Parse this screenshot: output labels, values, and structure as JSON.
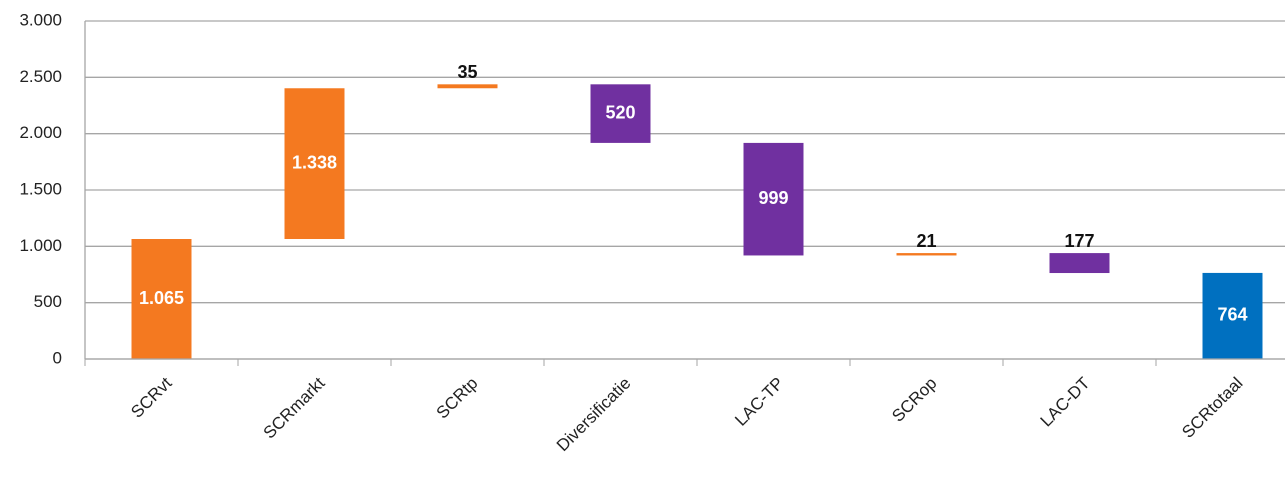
{
  "chart_data": {
    "type": "waterfall",
    "categories": [
      "SCRvt",
      "SCRmarkt",
      "SCRtp",
      "Diversificatie",
      "LAC-TP",
      "SCRop",
      "LAC-DT",
      "SCRtotaal"
    ],
    "values": [
      1065,
      1338,
      35,
      -520,
      -999,
      21,
      -177,
      764
    ],
    "value_labels": [
      "1.065",
      "1.338",
      "35",
      "520",
      "999",
      "21",
      "177",
      "764"
    ],
    "measures": [
      "relative",
      "relative",
      "relative",
      "relative",
      "relative",
      "relative",
      "relative",
      "total"
    ],
    "colors": [
      "#f47920",
      "#f47920",
      "#f47920",
      "#7030a0",
      "#7030a0",
      "#f47920",
      "#7030a0",
      "#0070c0"
    ],
    "ylim": [
      0,
      3000
    ],
    "yticks": [
      0,
      500,
      {
        "value": 1000,
        "label": "1.000"
      },
      {
        "value": 1500,
        "label": "1.500"
      },
      {
        "value": 2000,
        "label": "2.000"
      },
      {
        "value": 2500,
        "label": "2.500"
      },
      {
        "value": 3000,
        "label": "3.000"
      }
    ],
    "grid": true
  }
}
